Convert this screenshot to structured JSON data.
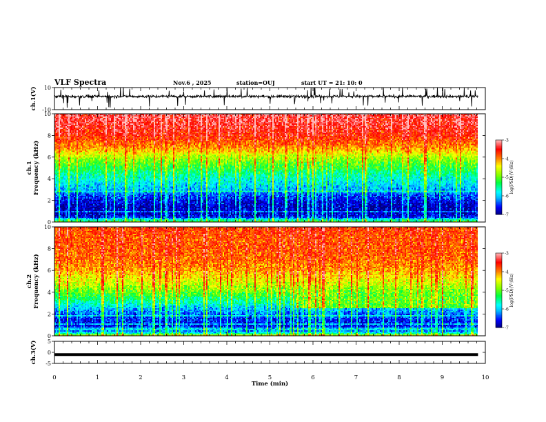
{
  "header": {
    "title": "VLF Spectra",
    "date": "Nov.6  , 2025",
    "station": "station=OUJ",
    "start": "start  UT  =   21: 10: 0"
  },
  "chart_data": [
    {
      "type": "line",
      "name": "ch1-waveform",
      "ylabel": "ch.1(V)",
      "ylim": [
        -10,
        10
      ],
      "yticks": [
        10,
        -10
      ],
      "xlim": [
        0,
        10
      ],
      "note_values": "waveform centred near +2 V with spikes reaching about ±10 V",
      "baseline": 2
    },
    {
      "type": "heatmap",
      "name": "ch1-spectrogram",
      "ylabel": "ch.1\nFrequency  (kHz)",
      "ylabel_lines": [
        "ch.1",
        "Frequency  (kHz)"
      ],
      "ylim": [
        0,
        10
      ],
      "yticks": [
        0,
        2,
        4,
        6,
        8,
        10
      ],
      "xlim": [
        0,
        9.83
      ],
      "colorbar": {
        "label": "log(PSD)(V²/Hz)",
        "range": [
          -7,
          -3
        ],
        "ticks": [
          -3,
          -4,
          -5,
          -6,
          -7
        ]
      },
      "profile_khz": [
        0,
        0.5,
        1,
        1.5,
        2,
        2.5,
        3,
        3.5,
        4,
        4.5,
        5,
        5.5,
        6,
        6.5,
        7,
        8,
        9,
        10
      ],
      "profile_log_psd": [
        -5.0,
        -6.7,
        -6.8,
        -6.8,
        -6.6,
        -6.4,
        -6.1,
        -5.9,
        -5.7,
        -5.5,
        -5.2,
        -5.0,
        -4.7,
        -4.3,
        -4.0,
        -3.6,
        -3.4,
        -3.3
      ]
    },
    {
      "type": "heatmap",
      "name": "ch2-spectrogram",
      "ylabel": "ch.2\nFrequency  (kHz)",
      "ylabel_lines": [
        "ch.2",
        "Frequency  (kHz)"
      ],
      "ylim": [
        0,
        10
      ],
      "yticks": [
        0,
        2,
        4,
        6,
        8,
        10
      ],
      "xlim": [
        0,
        9.83
      ],
      "colorbar": {
        "label": "log(PSD)(V²/Hz)",
        "range": [
          -7,
          -3
        ],
        "ticks": [
          -3,
          -4,
          -5,
          -6,
          -7
        ]
      },
      "profile_khz": [
        0,
        0.5,
        1,
        1.5,
        2,
        2.5,
        3,
        3.5,
        4,
        4.5,
        5,
        5.5,
        6,
        7,
        8,
        9,
        10
      ],
      "profile_log_psd": [
        -5.0,
        -6.4,
        -6.6,
        -6.5,
        -6.3,
        -6.0,
        -5.6,
        -5.3,
        -5.0,
        -4.7,
        -4.5,
        -4.3,
        -4.1,
        -3.9,
        -3.8,
        -3.8,
        -3.7
      ],
      "band_change": {
        "time_min": 5.6,
        "freq_range_khz": [
          2.5,
          4.0
        ],
        "log_psd_after": -5.0
      }
    },
    {
      "type": "line",
      "name": "ch3-trace",
      "ylabel": "ch.3(V)",
      "ylim": [
        -5,
        5
      ],
      "yticks": [
        5,
        0,
        -5
      ],
      "xlim": [
        0,
        10
      ],
      "x": [
        0,
        9.83
      ],
      "y": [
        -1,
        -1
      ]
    }
  ],
  "xaxis": {
    "label": "Time  (min)",
    "ticks": [
      "0",
      "1",
      "2",
      "3",
      "4",
      "5",
      "6",
      "7",
      "8",
      "9",
      "10"
    ]
  },
  "colors": {
    "axis": "#000000",
    "colormap": [
      "#000080",
      "#0000ff",
      "#00bfff",
      "#00ffff",
      "#00ff40",
      "#80ff00",
      "#ffff00",
      "#ff8000",
      "#ff0000",
      "#ffc0c0"
    ]
  }
}
